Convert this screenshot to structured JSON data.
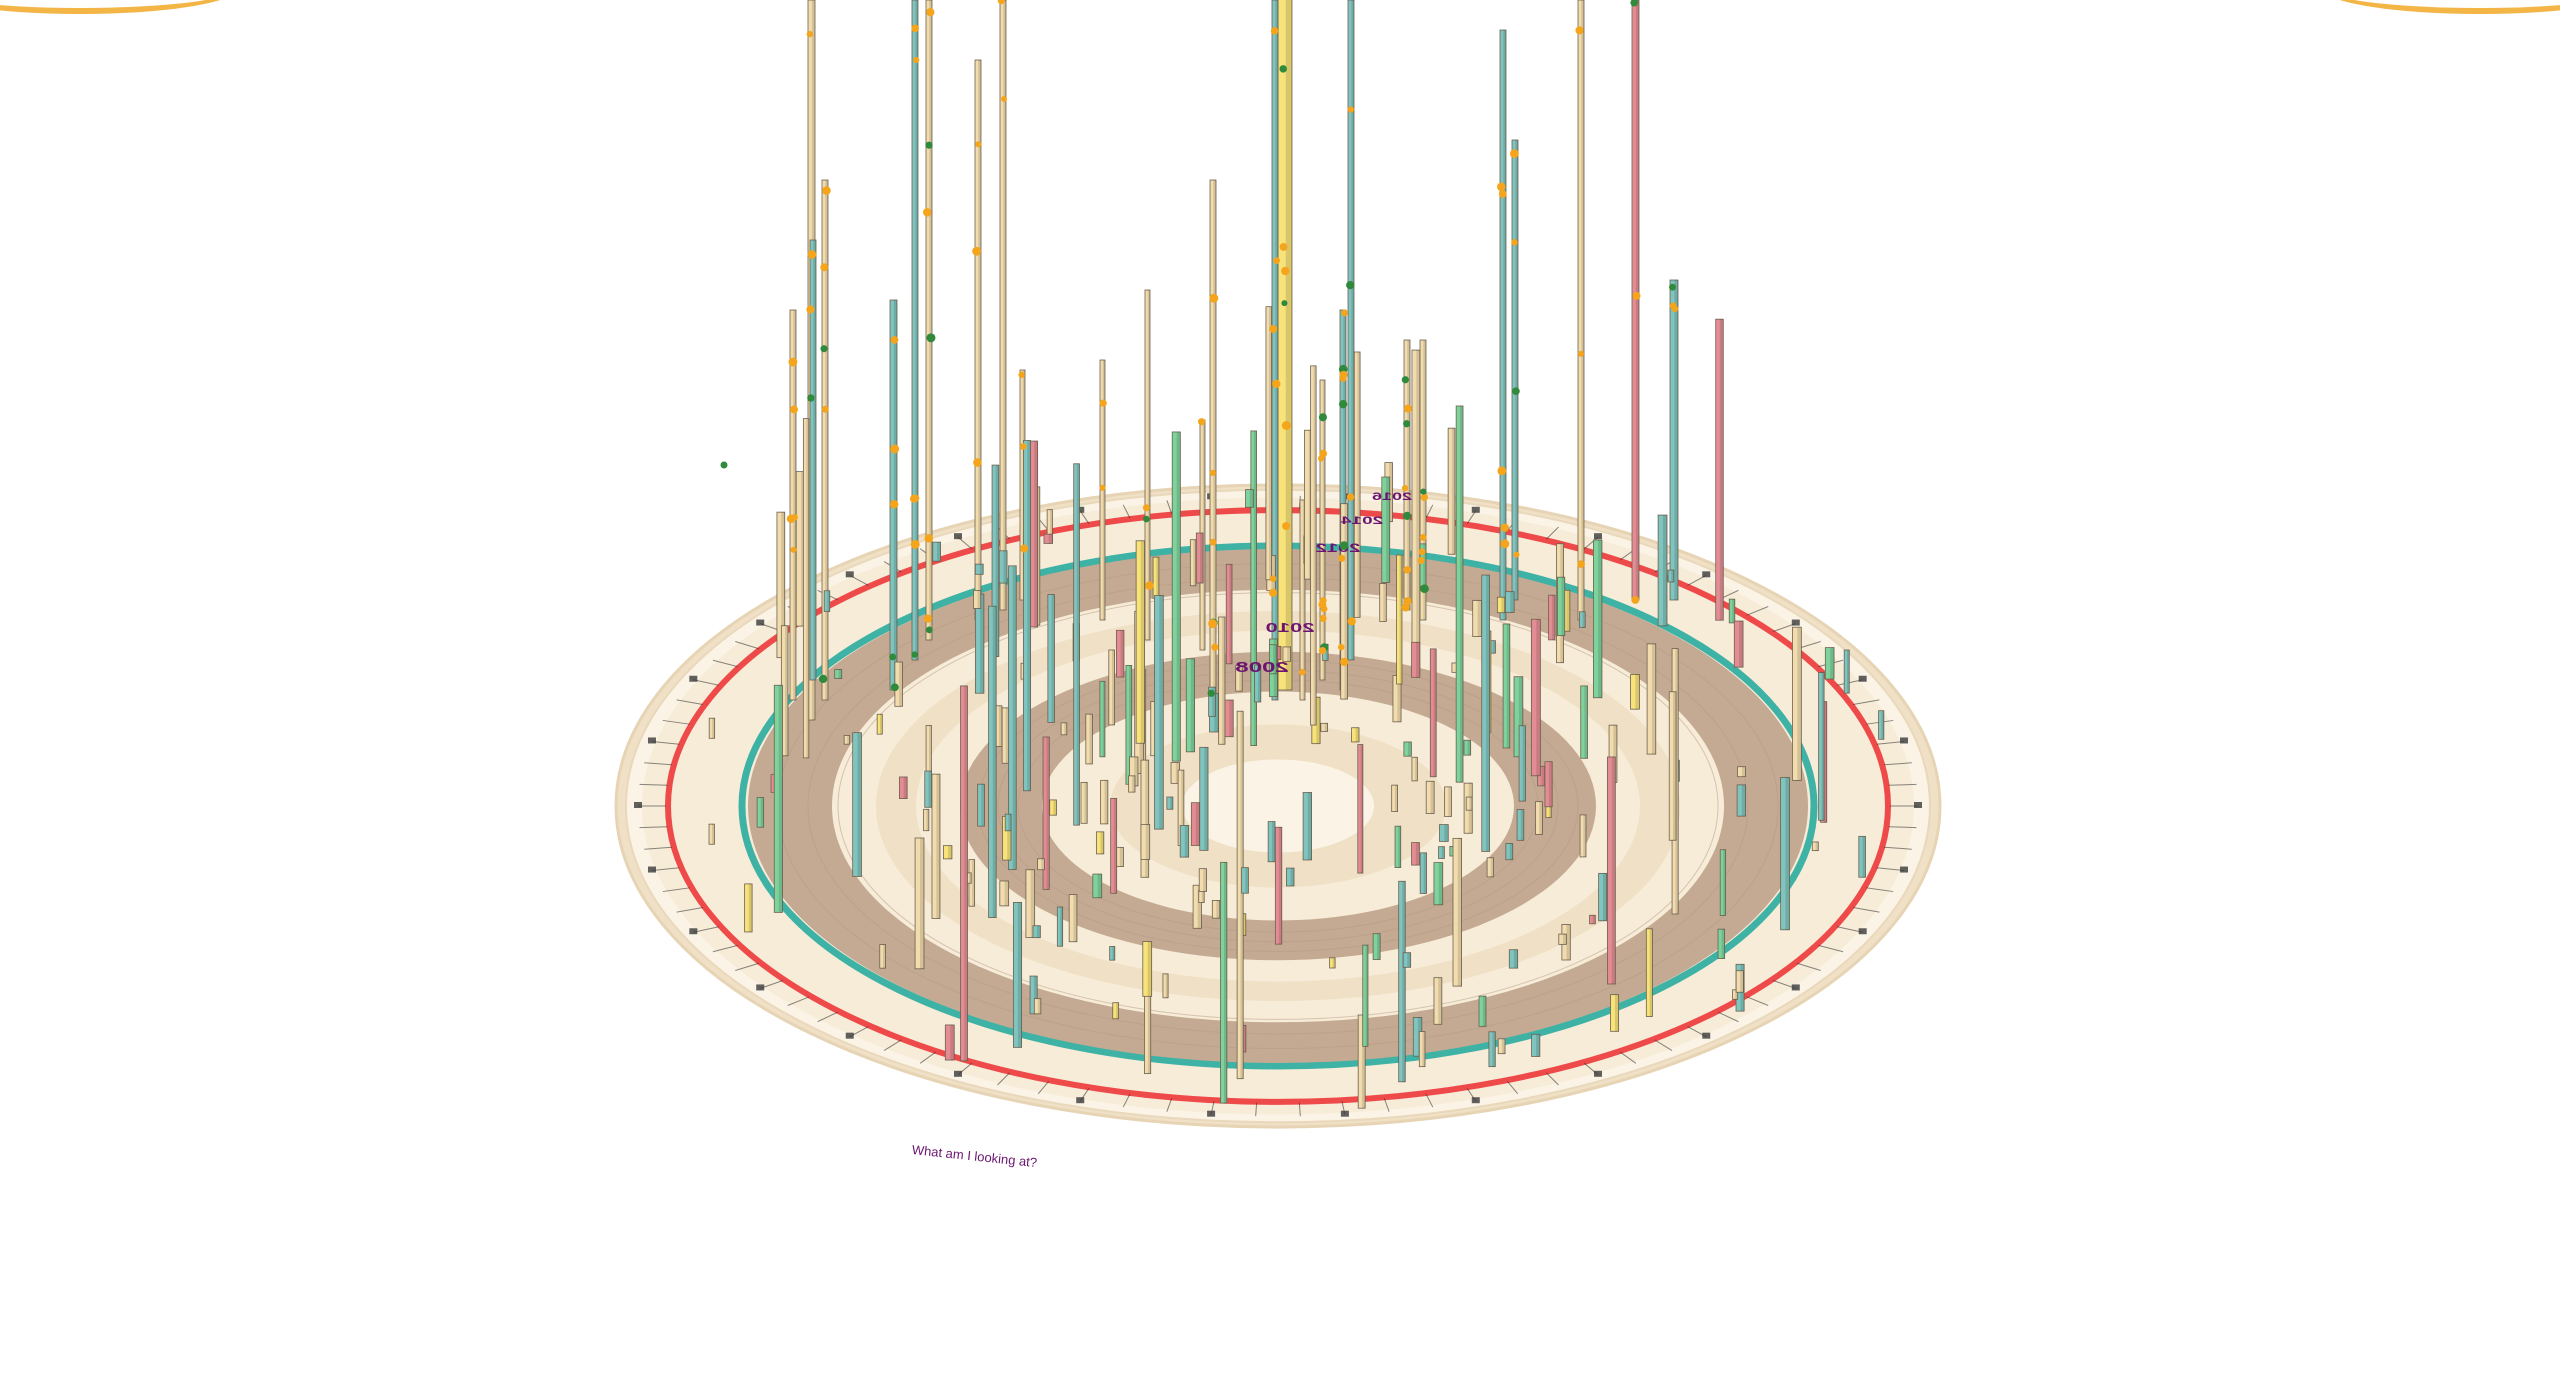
{
  "app": {
    "help_link": "What am I looking at?"
  },
  "colors": {
    "background": "#ffffff",
    "corner_accent": "#f4b547",
    "ring_cream": "#f7ecd8",
    "ring_cream_light": "#fbf4e6",
    "ring_beige": "#efe0c6",
    "ring_brown": "#c4aa92",
    "ring_teal": "#3fb2a6",
    "ring_red": "#ef4a4a",
    "label_purple": "#6b1570",
    "bar_cream": "#f2dcae",
    "bar_teal": "#7fc4be",
    "bar_yellow": "#f8e27a",
    "bar_pink": "#e48c93",
    "bar_green": "#7ed29c",
    "dot_orange": "#f4a51c",
    "dot_green": "#2f8a3b"
  },
  "icons": {
    "help": "question-text-link"
  },
  "scene": {
    "ring_year_labels": [
      "2008",
      "2010",
      "2012",
      "2014",
      "2016"
    ],
    "label_rotation_note": "year labels drawn mirrored on far side of the disc"
  }
}
